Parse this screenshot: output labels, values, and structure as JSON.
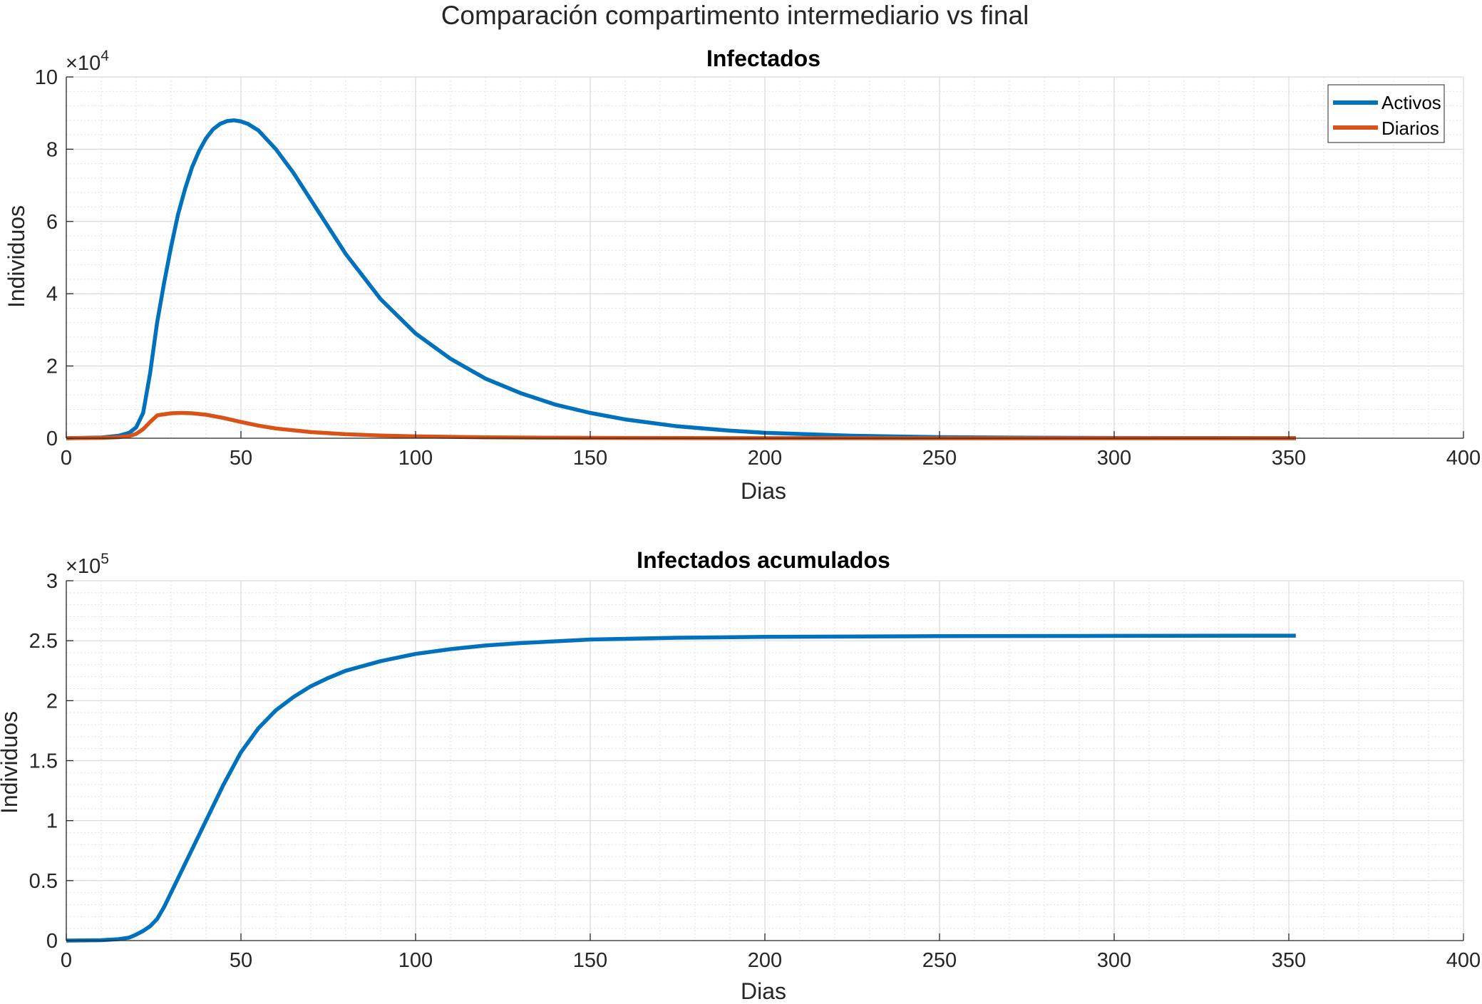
{
  "figure": {
    "title": "Comparación compartimento intermediario vs final"
  },
  "chart_data": [
    {
      "type": "line",
      "title": "Infectados",
      "xlabel": "Dias",
      "ylabel": "Individuos",
      "xlim": [
        0,
        400
      ],
      "ylim": [
        0,
        100000
      ],
      "xticks": [
        0,
        50,
        100,
        150,
        200,
        250,
        300,
        350,
        400
      ],
      "yticks": [
        0,
        20000,
        40000,
        60000,
        80000,
        100000
      ],
      "ytick_labels": [
        "0",
        "2",
        "4",
        "6",
        "8",
        "10"
      ],
      "y_exponent": {
        "base": "×10",
        "power": "4"
      },
      "grid": true,
      "minor_grid": true,
      "legend_position": "top-right",
      "series": [
        {
          "name": "Activos",
          "color": "#0072BD",
          "x": [
            0,
            10,
            15,
            18,
            20,
            22,
            24,
            26,
            28,
            30,
            32,
            34,
            36,
            38,
            40,
            42,
            44,
            46,
            48,
            50,
            52,
            55,
            60,
            65,
            70,
            75,
            80,
            90,
            100,
            110,
            120,
            130,
            140,
            150,
            160,
            175,
            190,
            200,
            225,
            250,
            275,
            300,
            325,
            352
          ],
          "y": [
            0,
            200,
            700,
            1500,
            3000,
            7000,
            18000,
            32000,
            43000,
            53000,
            62000,
            69000,
            75000,
            79500,
            83000,
            85500,
            87000,
            87800,
            88000,
            87700,
            87000,
            85200,
            80000,
            73500,
            66000,
            58500,
            51000,
            38500,
            29000,
            22000,
            16500,
            12500,
            9300,
            7000,
            5200,
            3300,
            2100,
            1500,
            700,
            300,
            150,
            80,
            40,
            20
          ]
        },
        {
          "name": "Diarios",
          "color": "#D95319",
          "x": [
            0,
            10,
            15,
            18,
            20,
            22,
            24,
            26,
            27,
            28,
            30,
            33,
            36,
            40,
            45,
            50,
            55,
            60,
            70,
            80,
            90,
            100,
            120,
            140,
            160,
            200,
            250,
            300,
            352
          ],
          "y": [
            0,
            100,
            300,
            600,
            1200,
            2500,
            4500,
            6300,
            6500,
            6600,
            6900,
            7000,
            6900,
            6500,
            5600,
            4500,
            3500,
            2700,
            1700,
            1100,
            750,
            520,
            250,
            130,
            70,
            20,
            8,
            3,
            1
          ]
        }
      ]
    },
    {
      "type": "line",
      "title": "Infectados acumulados",
      "xlabel": "Dias",
      "ylabel": "Individuos",
      "xlim": [
        0,
        400
      ],
      "ylim": [
        0,
        300000
      ],
      "xticks": [
        0,
        50,
        100,
        150,
        200,
        250,
        300,
        350,
        400
      ],
      "yticks": [
        0,
        50000,
        100000,
        150000,
        200000,
        250000,
        300000
      ],
      "ytick_labels": [
        "0",
        "0.5",
        "1",
        "1.5",
        "2",
        "2.5",
        "3"
      ],
      "y_exponent": {
        "base": "×10",
        "power": "5"
      },
      "grid": true,
      "minor_grid": true,
      "series": [
        {
          "color": "#0072BD",
          "x": [
            0,
            10,
            15,
            18,
            20,
            22,
            24,
            26,
            28,
            30,
            35,
            40,
            45,
            50,
            55,
            60,
            65,
            70,
            75,
            80,
            90,
            100,
            110,
            120,
            130,
            150,
            175,
            200,
            250,
            300,
            352
          ],
          "y": [
            0,
            300,
            1200,
            2500,
            5000,
            8000,
            12000,
            18000,
            28000,
            40000,
            70000,
            100000,
            130000,
            157000,
            177000,
            192000,
            203000,
            212000,
            219000,
            225000,
            233000,
            239000,
            243000,
            246000,
            248000,
            251000,
            252500,
            253200,
            253800,
            254000,
            254200
          ]
        }
      ]
    }
  ]
}
